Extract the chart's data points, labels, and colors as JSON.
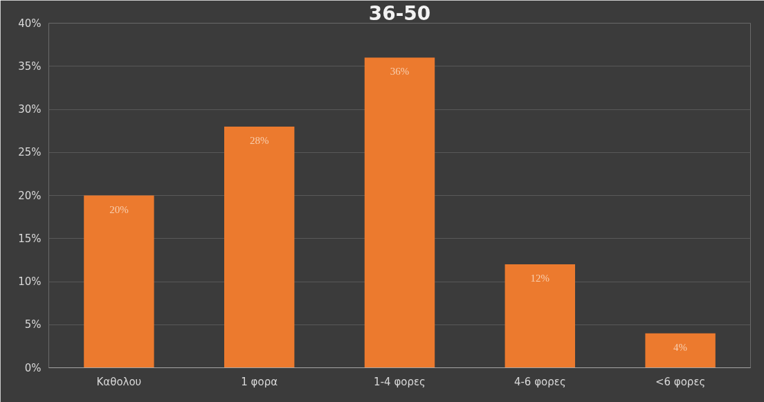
{
  "chart_data": {
    "type": "bar",
    "title": "36-50",
    "categories": [
      "Καθολου",
      "1 φορα",
      "1-4 φορες",
      "4-6 φορες",
      "<6 φορες"
    ],
    "values": [
      20,
      28,
      36,
      12,
      4
    ],
    "value_labels": [
      "20%",
      "28%",
      "36%",
      "12%",
      "4%"
    ],
    "color": "#ec7a2e",
    "ylim": [
      0,
      40
    ],
    "yticks": [
      {
        "value": 0,
        "label": "0%"
      },
      {
        "value": 5,
        "label": "5%"
      },
      {
        "value": 10,
        "label": "10%"
      },
      {
        "value": 15,
        "label": "15%"
      },
      {
        "value": 20,
        "label": "20%"
      },
      {
        "value": 25,
        "label": "25%"
      },
      {
        "value": 30,
        "label": "30%"
      },
      {
        "value": 35,
        "label": "35%"
      },
      {
        "value": 40,
        "label": "40%"
      }
    ],
    "grid": "y"
  }
}
